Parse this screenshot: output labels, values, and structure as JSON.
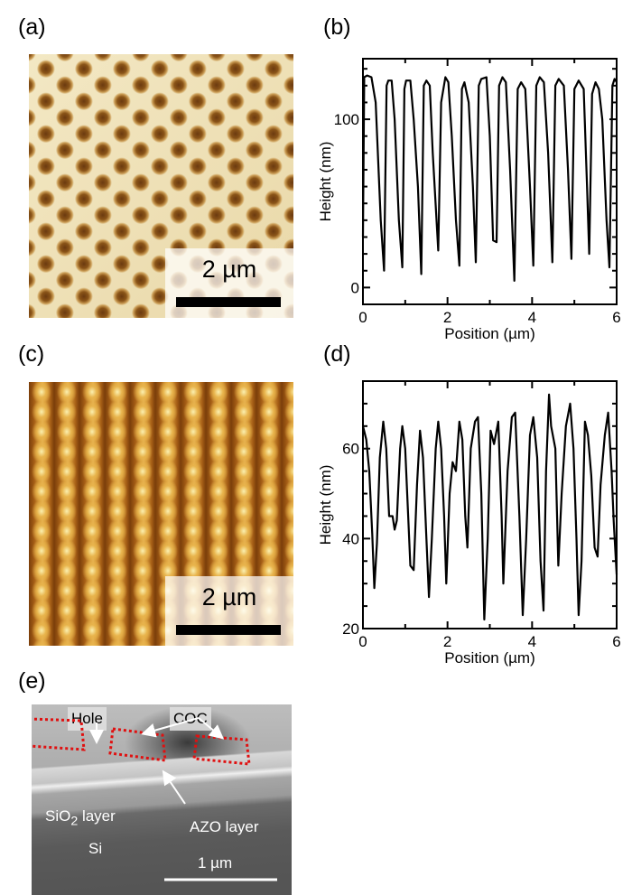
{
  "panels": {
    "a": {
      "label": "(a)",
      "scale": "2 µm"
    },
    "b": {
      "label": "(b)"
    },
    "c": {
      "label": "(c)",
      "scale": "2 µm"
    },
    "d": {
      "label": "(d)"
    },
    "e": {
      "label": "(e)",
      "hole": "Hole",
      "coc": "COC",
      "sio2": "SiO",
      "sio2_sub": "2",
      "sio2_rest": " layer",
      "azo": "AZO layer",
      "si": "Si",
      "scale": "1 µm"
    }
  },
  "chart_data": [
    {
      "id": "b",
      "type": "line",
      "title": "",
      "xlabel": "Position (µm)",
      "ylabel": "Height (nm)",
      "xlim": [
        0,
        6
      ],
      "ylim": [
        -10,
        136
      ],
      "xticks": [
        0,
        2,
        4,
        6
      ],
      "xticklabels": [
        "0",
        "2",
        "4",
        "6"
      ],
      "xminor": 1,
      "yticks": [
        0,
        100
      ],
      "yticklabels": [
        "0",
        "100"
      ],
      "yminor": 10,
      "grid": false,
      "series": [
        {
          "name": "profile",
          "color": "#000000",
          "points": [
            [
              0,
              30
            ],
            [
              0.03,
              125
            ],
            [
              0.1,
              126
            ],
            [
              0.2,
              125
            ],
            [
              0.3,
              110
            ],
            [
              0.42,
              40
            ],
            [
              0.5,
              10
            ],
            [
              0.56,
              120
            ],
            [
              0.6,
              123
            ],
            [
              0.68,
              123
            ],
            [
              0.75,
              100
            ],
            [
              0.85,
              40
            ],
            [
              0.93,
              12
            ],
            [
              0.98,
              118
            ],
            [
              1.02,
              123
            ],
            [
              1.12,
              123
            ],
            [
              1.2,
              100
            ],
            [
              1.3,
              60
            ],
            [
              1.38,
              8
            ],
            [
              1.44,
              120
            ],
            [
              1.5,
              123
            ],
            [
              1.58,
              120
            ],
            [
              1.65,
              80
            ],
            [
              1.78,
              22
            ],
            [
              1.85,
              110
            ],
            [
              1.95,
              125
            ],
            [
              2.02,
              122
            ],
            [
              2.1,
              90
            ],
            [
              2.2,
              40
            ],
            [
              2.28,
              13
            ],
            [
              2.34,
              118
            ],
            [
              2.4,
              122
            ],
            [
              2.5,
              110
            ],
            [
              2.6,
              60
            ],
            [
              2.67,
              15
            ],
            [
              2.74,
              120
            ],
            [
              2.8,
              124
            ],
            [
              2.92,
              125
            ],
            [
              3.0,
              90
            ],
            [
              3.08,
              28
            ],
            [
              3.16,
              27
            ],
            [
              3.22,
              120
            ],
            [
              3.3,
              125
            ],
            [
              3.38,
              122
            ],
            [
              3.48,
              70
            ],
            [
              3.58,
              4
            ],
            [
              3.66,
              118
            ],
            [
              3.74,
              122
            ],
            [
              3.84,
              118
            ],
            [
              3.95,
              60
            ],
            [
              4.03,
              13
            ],
            [
              4.1,
              120
            ],
            [
              4.18,
              125
            ],
            [
              4.28,
              122
            ],
            [
              4.38,
              80
            ],
            [
              4.48,
              15
            ],
            [
              4.55,
              120
            ],
            [
              4.63,
              124
            ],
            [
              4.75,
              120
            ],
            [
              4.85,
              70
            ],
            [
              4.93,
              17
            ],
            [
              5.0,
              118
            ],
            [
              5.1,
              123
            ],
            [
              5.22,
              118
            ],
            [
              5.3,
              60
            ],
            [
              5.35,
              20
            ],
            [
              5.42,
              115
            ],
            [
              5.5,
              122
            ],
            [
              5.58,
              118
            ],
            [
              5.66,
              100
            ],
            [
              5.76,
              40
            ],
            [
              5.83,
              12
            ],
            [
              5.9,
              120
            ],
            [
              5.95,
              124
            ],
            [
              6.0,
              122
            ]
          ]
        }
      ]
    },
    {
      "id": "d",
      "type": "line",
      "title": "",
      "xlabel": "Position (µm)",
      "ylabel": "Height (nm)",
      "xlim": [
        0,
        6
      ],
      "ylim": [
        20,
        75
      ],
      "xticks": [
        0,
        2,
        4,
        6
      ],
      "xticklabels": [
        "0",
        "2",
        "4",
        "6"
      ],
      "xminor": 1,
      "yticks": [
        20,
        40,
        60
      ],
      "yticklabels": [
        "20",
        "40",
        "60"
      ],
      "yminor": 5,
      "grid": false,
      "series": [
        {
          "name": "profile",
          "color": "#000000",
          "points": [
            [
              0,
              65
            ],
            [
              0.08,
              62
            ],
            [
              0.15,
              55
            ],
            [
              0.22,
              41
            ],
            [
              0.27,
              29
            ],
            [
              0.33,
              39
            ],
            [
              0.4,
              58
            ],
            [
              0.48,
              66
            ],
            [
              0.55,
              60
            ],
            [
              0.62,
              45
            ],
            [
              0.7,
              45
            ],
            [
              0.75,
              42
            ],
            [
              0.8,
              44
            ],
            [
              0.88,
              60
            ],
            [
              0.93,
              65
            ],
            [
              1.0,
              60
            ],
            [
              1.07,
              45
            ],
            [
              1.12,
              34
            ],
            [
              1.2,
              33
            ],
            [
              1.28,
              52
            ],
            [
              1.35,
              64
            ],
            [
              1.42,
              58
            ],
            [
              1.5,
              40
            ],
            [
              1.56,
              27
            ],
            [
              1.63,
              40
            ],
            [
              1.72,
              60
            ],
            [
              1.78,
              66
            ],
            [
              1.85,
              60
            ],
            [
              1.92,
              45
            ],
            [
              1.97,
              30
            ],
            [
              2.05,
              50
            ],
            [
              2.12,
              57
            ],
            [
              2.2,
              55
            ],
            [
              2.28,
              66
            ],
            [
              2.35,
              62
            ],
            [
              2.42,
              45
            ],
            [
              2.47,
              38
            ],
            [
              2.55,
              60
            ],
            [
              2.65,
              66
            ],
            [
              2.72,
              67
            ],
            [
              2.8,
              50
            ],
            [
              2.87,
              22
            ],
            [
              2.95,
              40
            ],
            [
              3.02,
              64
            ],
            [
              3.1,
              61
            ],
            [
              3.2,
              66
            ],
            [
              3.28,
              45
            ],
            [
              3.32,
              30
            ],
            [
              3.42,
              55
            ],
            [
              3.52,
              67
            ],
            [
              3.6,
              68
            ],
            [
              3.7,
              45
            ],
            [
              3.78,
              23
            ],
            [
              3.86,
              40
            ],
            [
              3.95,
              63
            ],
            [
              4.03,
              67
            ],
            [
              4.12,
              58
            ],
            [
              4.2,
              35
            ],
            [
              4.27,
              24
            ],
            [
              4.33,
              55
            ],
            [
              4.4,
              72
            ],
            [
              4.45,
              65
            ],
            [
              4.55,
              60
            ],
            [
              4.62,
              34
            ],
            [
              4.7,
              50
            ],
            [
              4.8,
              65
            ],
            [
              4.9,
              70
            ],
            [
              4.98,
              60
            ],
            [
              5.05,
              40
            ],
            [
              5.1,
              23
            ],
            [
              5.17,
              35
            ],
            [
              5.25,
              66
            ],
            [
              5.32,
              63
            ],
            [
              5.4,
              54
            ],
            [
              5.48,
              38
            ],
            [
              5.55,
              36
            ],
            [
              5.62,
              52
            ],
            [
              5.72,
              63
            ],
            [
              5.8,
              68
            ],
            [
              5.88,
              55
            ],
            [
              5.93,
              44
            ],
            [
              6.0,
              32
            ]
          ]
        }
      ]
    }
  ]
}
